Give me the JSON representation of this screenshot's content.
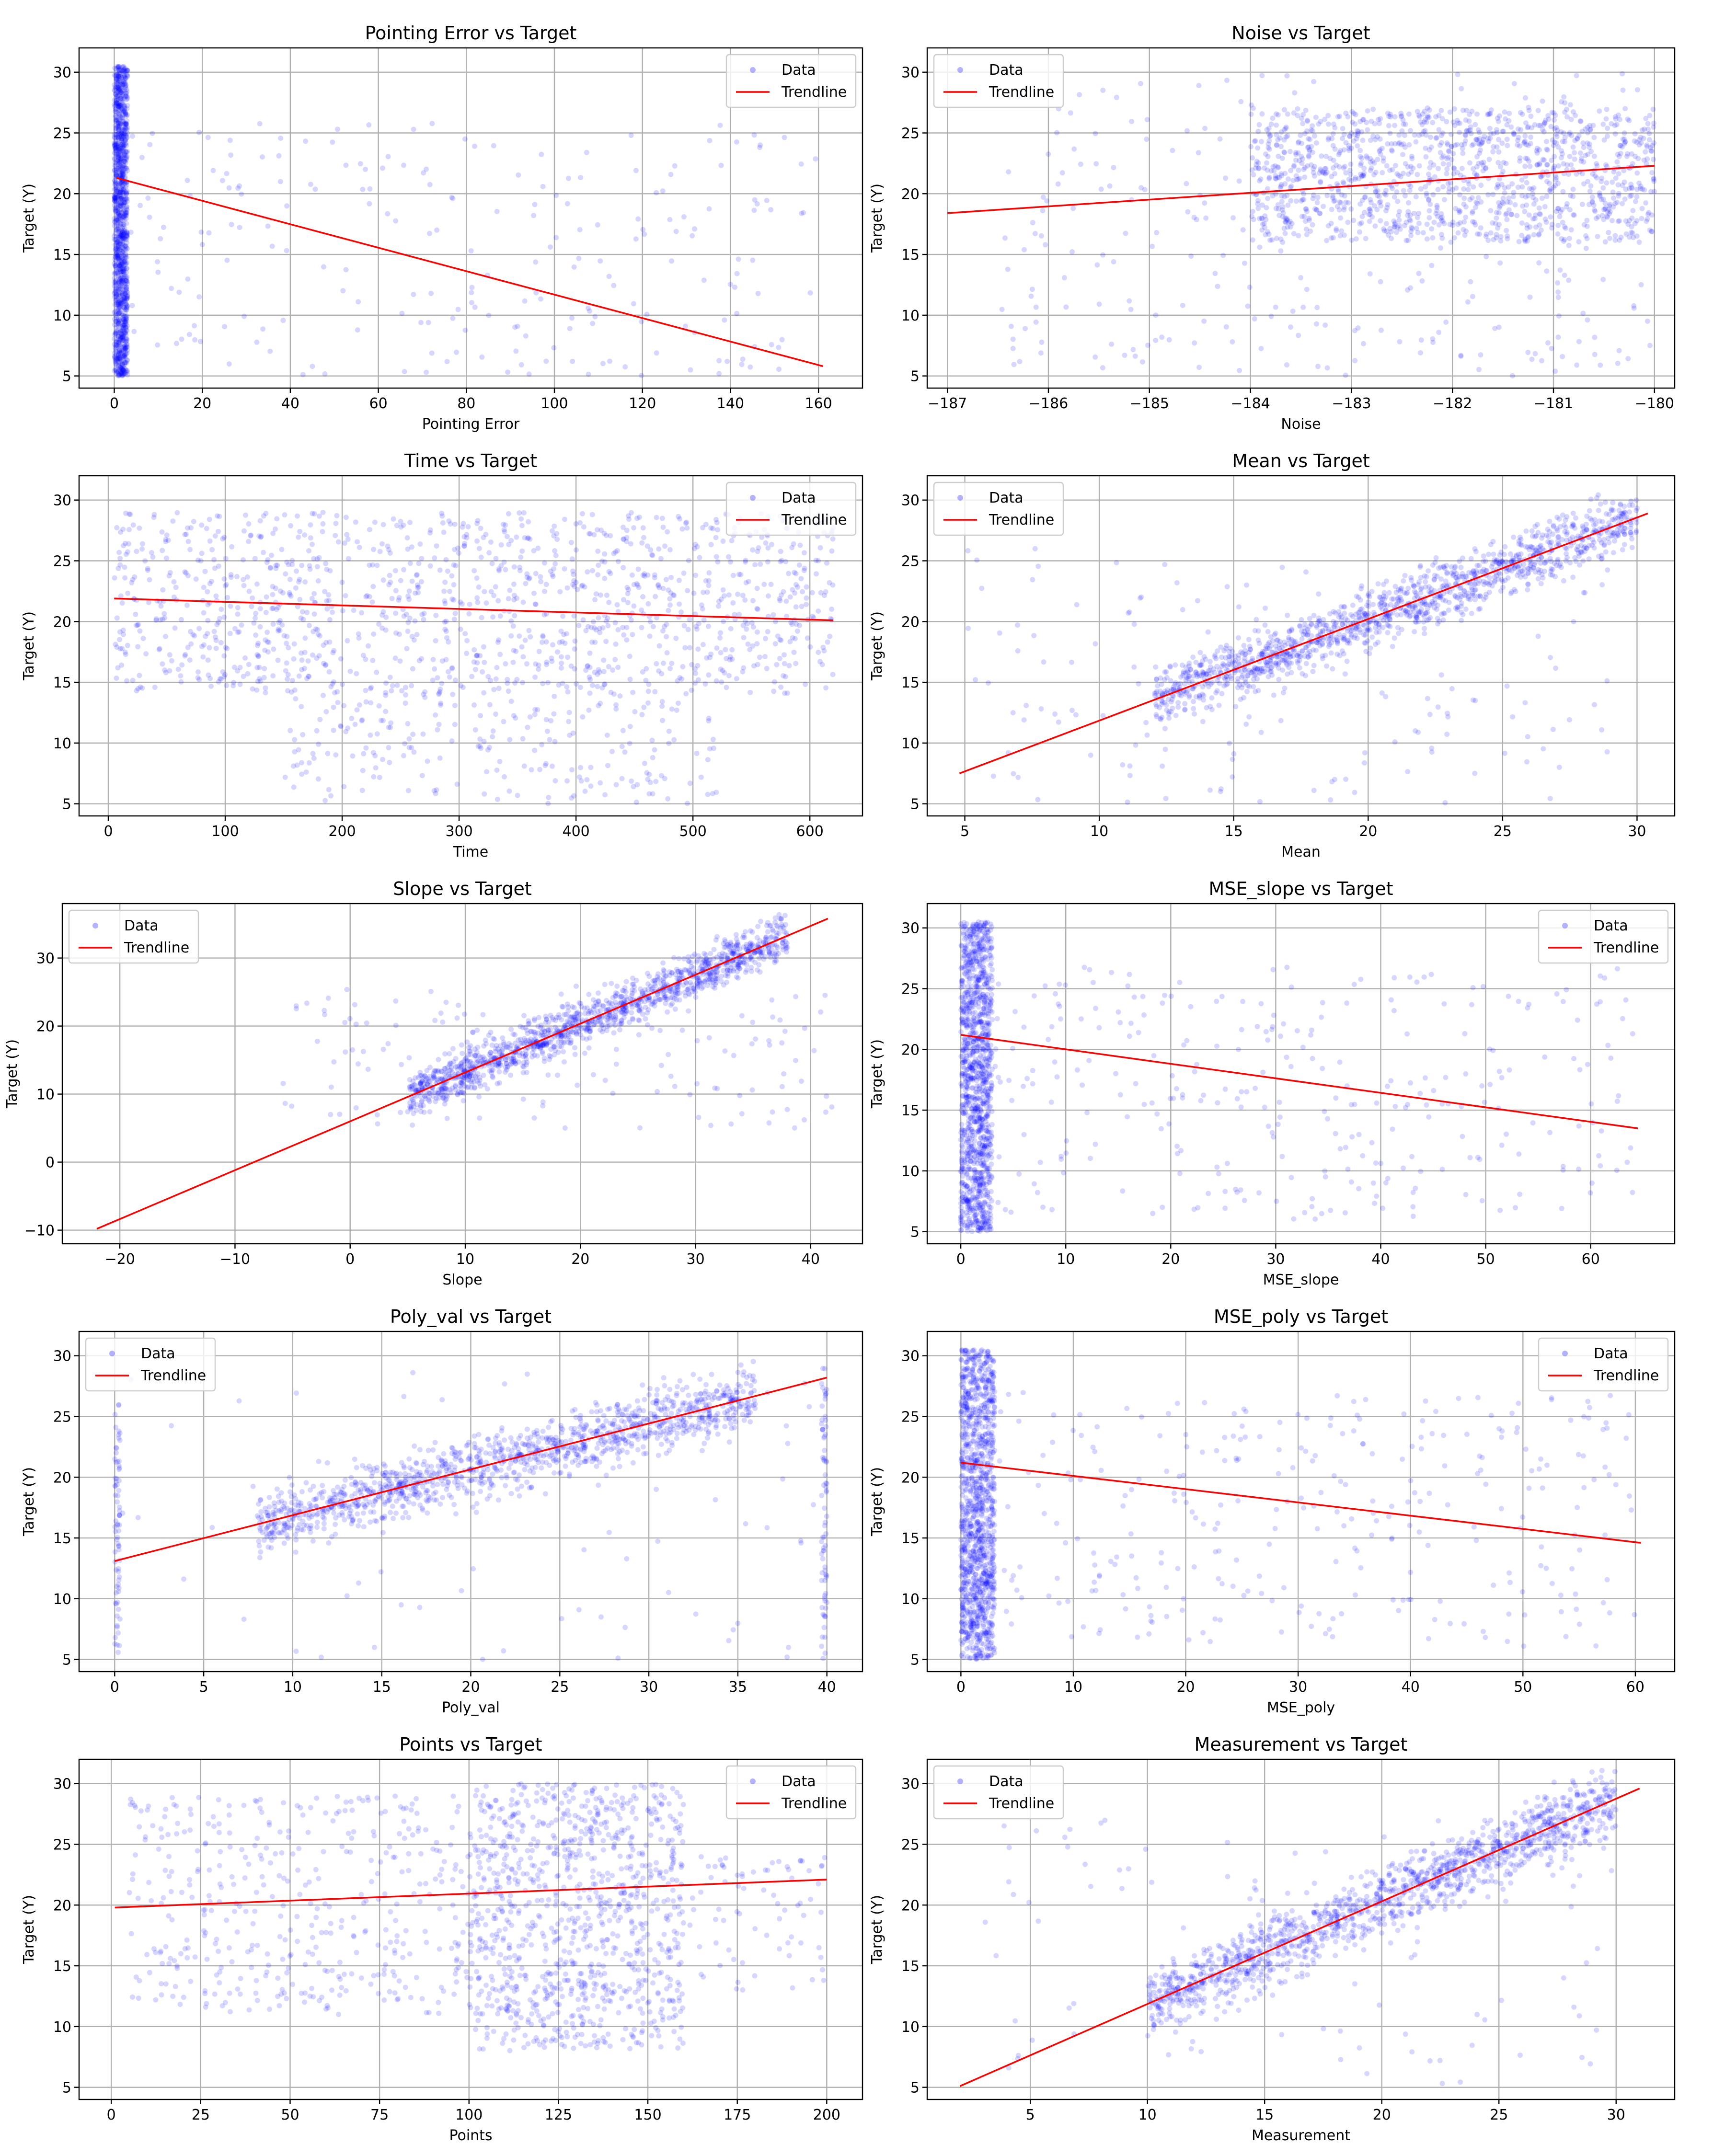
{
  "figure": {
    "background": "#ffffff",
    "point_color": "#0000ff",
    "trend_color": "#ff0000"
  },
  "chart_data": [
    {
      "type": "scatter",
      "title": "Pointing Error vs Target",
      "xlabel": "Pointing Error",
      "ylabel": "Target (Y)",
      "xlim": [
        -8,
        170
      ],
      "ylim": [
        4,
        32
      ],
      "xticks": [
        0,
        20,
        40,
        60,
        80,
        100,
        120,
        140,
        160
      ],
      "yticks": [
        5,
        10,
        15,
        20,
        25,
        30
      ],
      "grid": true,
      "legend": {
        "placement": "top-right",
        "entries": [
          "Data",
          "Trendline"
        ]
      },
      "trendline": {
        "x": [
          0.5,
          161
        ],
        "y": [
          21.3,
          5.8
        ]
      },
      "scatter_profile": {
        "clusters": [
          {
            "x_range": [
              0,
              3
            ],
            "y_range": [
              5,
              30.5
            ],
            "share": 0.85
          },
          {
            "x_range": [
              3,
              160
            ],
            "y_range": [
              5,
              26
            ],
            "share": 0.15
          }
        ]
      }
    },
    {
      "type": "scatter",
      "title": "Noise vs Target",
      "xlabel": "Noise",
      "ylabel": "Target (Y)",
      "xlim": [
        -187.2,
        -179.8
      ],
      "ylim": [
        4,
        32
      ],
      "xticks": [
        -187,
        -186,
        -185,
        -184,
        -183,
        -182,
        -181,
        -180
      ],
      "yticks": [
        5,
        10,
        15,
        20,
        25,
        30
      ],
      "grid": true,
      "legend": {
        "placement": "top-left",
        "entries": [
          "Data",
          "Trendline"
        ]
      },
      "trendline": {
        "x": [
          -187,
          -180
        ],
        "y": [
          18.4,
          22.3
        ]
      },
      "scatter_profile": {
        "clusters": [
          {
            "x_range": [
              -184,
              -180
            ],
            "y_range": [
              16,
              27
            ],
            "share": 0.8
          },
          {
            "x_range": [
              -186.5,
              -180
            ],
            "y_range": [
              5,
              30
            ],
            "share": 0.2
          }
        ]
      }
    },
    {
      "type": "scatter",
      "title": "Time vs Target",
      "xlabel": "Time",
      "ylabel": "Target (Y)",
      "xlim": [
        -25,
        645
      ],
      "ylim": [
        4,
        32
      ],
      "xticks": [
        0,
        100,
        200,
        300,
        400,
        500,
        600
      ],
      "yticks": [
        5,
        10,
        15,
        20,
        25,
        30
      ],
      "grid": true,
      "legend": {
        "placement": "top-right",
        "entries": [
          "Data",
          "Trendline"
        ]
      },
      "trendline": {
        "x": [
          5,
          620
        ],
        "y": [
          21.9,
          20.1
        ]
      },
      "scatter_profile": {
        "clusters": [
          {
            "x_range": [
              5,
              620
            ],
            "y_range": [
              14,
              29
            ],
            "share": 0.85
          },
          {
            "x_range": [
              150,
              520
            ],
            "y_range": [
              5,
              14
            ],
            "share": 0.15
          }
        ]
      }
    },
    {
      "type": "scatter",
      "title": "Mean vs Target",
      "xlabel": "Mean",
      "ylabel": "Target (Y)",
      "xlim": [
        3.6,
        31.4
      ],
      "ylim": [
        4,
        32
      ],
      "xticks": [
        5,
        10,
        15,
        20,
        25,
        30
      ],
      "yticks": [
        5,
        10,
        15,
        20,
        25,
        30
      ],
      "grid": true,
      "legend": {
        "placement": "top-left",
        "entries": [
          "Data",
          "Trendline"
        ]
      },
      "trendline": {
        "x": [
          4.8,
          30.4
        ],
        "y": [
          7.5,
          28.9
        ]
      },
      "scatter_profile": {
        "clusters": [
          {
            "x_range": [
              12,
              30
            ],
            "y_range": [
              12,
              30
            ],
            "share": 0.9,
            "along_trend": true
          },
          {
            "x_range": [
              5,
              29
            ],
            "y_range": [
              5,
              26
            ],
            "share": 0.1
          }
        ]
      }
    },
    {
      "type": "scatter",
      "title": "Slope vs Target",
      "xlabel": "Slope",
      "ylabel": "Target (Y)",
      "xlim": [
        -25,
        44.5
      ],
      "ylim": [
        -12,
        38
      ],
      "xticks": [
        -20,
        -10,
        0,
        10,
        20,
        30,
        40
      ],
      "yticks": [
        -10,
        0,
        10,
        20,
        30
      ],
      "grid": true,
      "legend": {
        "placement": "top-left",
        "entries": [
          "Data",
          "Trendline"
        ]
      },
      "trendline": {
        "x": [
          -22,
          41.5
        ],
        "y": [
          -9.8,
          35.8
        ]
      },
      "scatter_profile": {
        "clusters": [
          {
            "x_range": [
              5,
              38
            ],
            "y_range": [
              5,
              30
            ],
            "share": 0.9,
            "along_trend": true
          },
          {
            "x_range": [
              -6,
              42
            ],
            "y_range": [
              5,
              26
            ],
            "share": 0.1
          }
        ]
      }
    },
    {
      "type": "scatter",
      "title": "MSE_slope vs Target",
      "xlabel": "MSE_slope",
      "ylabel": "Target (Y)",
      "xlim": [
        -3.2,
        68
      ],
      "ylim": [
        4,
        32
      ],
      "xticks": [
        0,
        10,
        20,
        30,
        40,
        50,
        60
      ],
      "yticks": [
        5,
        10,
        15,
        20,
        25,
        30
      ],
      "grid": true,
      "legend": {
        "placement": "top-right",
        "entries": [
          "Data",
          "Trendline"
        ]
      },
      "trendline": {
        "x": [
          0,
          64.5
        ],
        "y": [
          21.2,
          13.5
        ]
      },
      "scatter_profile": {
        "clusters": [
          {
            "x_range": [
              0,
              3
            ],
            "y_range": [
              5,
              30.5
            ],
            "share": 0.8
          },
          {
            "x_range": [
              3,
              64
            ],
            "y_range": [
              6,
              27
            ],
            "share": 0.2
          }
        ]
      }
    },
    {
      "type": "scatter",
      "title": "Poly_val vs Target",
      "xlabel": "Poly_val",
      "ylabel": "Target (Y)",
      "xlim": [
        -2,
        42
      ],
      "ylim": [
        4,
        32
      ],
      "xticks": [
        0,
        5,
        10,
        15,
        20,
        25,
        30,
        35,
        40
      ],
      "yticks": [
        5,
        10,
        15,
        20,
        25,
        30
      ],
      "grid": true,
      "legend": {
        "placement": "top-left",
        "entries": [
          "Data",
          "Trendline"
        ]
      },
      "trendline": {
        "x": [
          0,
          40
        ],
        "y": [
          13.1,
          28.2
        ]
      },
      "scatter_profile": {
        "clusters": [
          {
            "x_range": [
              8,
              36
            ],
            "y_range": [
              10,
              29.5
            ],
            "share": 0.85,
            "along_trend": true
          },
          {
            "x_range": [
              0,
              0.3
            ],
            "y_range": [
              5,
              26
            ],
            "share": 0.05
          },
          {
            "x_range": [
              39.7,
              40
            ],
            "y_range": [
              5,
              29
            ],
            "share": 0.05
          },
          {
            "x_range": [
              0,
              40
            ],
            "y_range": [
              5,
              29
            ],
            "share": 0.05
          }
        ]
      }
    },
    {
      "type": "scatter",
      "title": "MSE_poly vs Target",
      "xlabel": "MSE_poly",
      "ylabel": "Target (Y)",
      "xlim": [
        -3,
        63.5
      ],
      "ylim": [
        4,
        32
      ],
      "xticks": [
        0,
        10,
        20,
        30,
        40,
        50,
        60
      ],
      "yticks": [
        5,
        10,
        15,
        20,
        25,
        30
      ],
      "grid": true,
      "legend": {
        "placement": "top-right",
        "entries": [
          "Data",
          "Trendline"
        ]
      },
      "trendline": {
        "x": [
          0,
          60.5
        ],
        "y": [
          21.2,
          14.6
        ]
      },
      "scatter_profile": {
        "clusters": [
          {
            "x_range": [
              0,
              3
            ],
            "y_range": [
              5,
              30.5
            ],
            "share": 0.8
          },
          {
            "x_range": [
              3,
              60
            ],
            "y_range": [
              6,
              27
            ],
            "share": 0.2
          }
        ]
      }
    },
    {
      "type": "scatter",
      "title": "Points vs Target",
      "xlabel": "Points",
      "ylabel": "Target (Y)",
      "xlim": [
        -9,
        210
      ],
      "ylim": [
        4,
        32
      ],
      "xticks": [
        0,
        25,
        50,
        75,
        100,
        125,
        150,
        175,
        200
      ],
      "yticks": [
        5,
        10,
        15,
        20,
        25,
        30
      ],
      "grid": true,
      "legend": {
        "placement": "top-right",
        "entries": [
          "Data",
          "Trendline"
        ]
      },
      "trendline": {
        "x": [
          1,
          200
        ],
        "y": [
          19.8,
          22.1
        ]
      },
      "scatter_profile": {
        "clusters": [
          {
            "x_range": [
              100,
              160
            ],
            "y_range": [
              8,
              30
            ],
            "share": 0.5
          },
          {
            "x_range": [
              5,
              160
            ],
            "y_range": [
              11,
              29
            ],
            "share": 0.45
          },
          {
            "x_range": [
              160,
              200
            ],
            "y_range": [
              13,
              24
            ],
            "share": 0.05
          }
        ]
      }
    },
    {
      "type": "scatter",
      "title": "Measurement vs Target",
      "xlabel": "Measurement",
      "ylabel": "Target (Y)",
      "xlim": [
        0.6,
        32.5
      ],
      "ylim": [
        4,
        32
      ],
      "xticks": [
        5,
        10,
        15,
        20,
        25,
        30
      ],
      "yticks": [
        5,
        10,
        15,
        20,
        25,
        30
      ],
      "grid": true,
      "legend": {
        "placement": "top-left",
        "entries": [
          "Data",
          "Trendline"
        ]
      },
      "trendline": {
        "x": [
          2,
          31
        ],
        "y": [
          5.1,
          29.6
        ]
      },
      "scatter_profile": {
        "clusters": [
          {
            "x_range": [
              10,
              30
            ],
            "y_range": [
              9,
              30
            ],
            "share": 0.92,
            "along_trend": true
          },
          {
            "x_range": [
              3,
              30
            ],
            "y_range": [
              5,
              27
            ],
            "share": 0.08
          }
        ]
      }
    }
  ]
}
